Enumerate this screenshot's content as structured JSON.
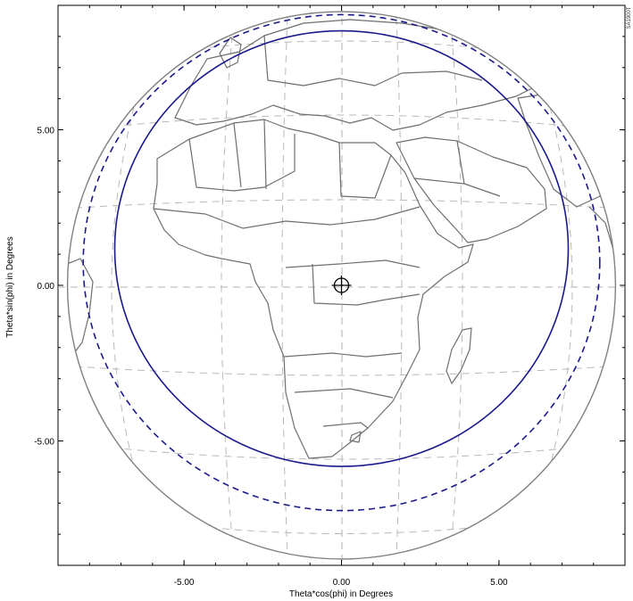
{
  "chart_data": {
    "type": "map",
    "projection": "earth-disk view from geostationary satellite",
    "xlabel": "Theta*cos(phi) in Degrees",
    "ylabel": "Theta*sin(phi) in Degrees",
    "xlim": [
      -9.0,
      9.0
    ],
    "ylim": [
      -9.0,
      9.0
    ],
    "x_ticks": [
      {
        "value": -5,
        "label": "-5.00"
      },
      {
        "value": 0,
        "label": "0.00"
      },
      {
        "value": 5,
        "label": "5.00"
      }
    ],
    "y_ticks": [
      {
        "value": 5,
        "label": "5.00"
      },
      {
        "value": 0,
        "label": "0.00"
      },
      {
        "value": -5,
        "label": "-5.00"
      }
    ],
    "corner_label": "SA1900T",
    "earth_disk": {
      "center": [
        0.0,
        0.0
      ],
      "radius_deg": 8.7,
      "color": "#808080"
    },
    "graticule": {
      "style": "dashed",
      "color": "#b0b0b0"
    },
    "grid": true,
    "coverage_contours": [
      {
        "style": "solid",
        "color": "#1a1a8c",
        "center": [
          0.0,
          1.18
        ],
        "rx": 7.2,
        "ry": 7.0
      },
      {
        "style": "dashed",
        "color": "#1a1a8c",
        "center": [
          0.0,
          0.73
        ],
        "rx": 8.2,
        "ry": 7.97
      }
    ],
    "boresight": {
      "x": 0.0,
      "y": 0.0
    },
    "region_shown": "Africa, Europe and the Middle East"
  }
}
